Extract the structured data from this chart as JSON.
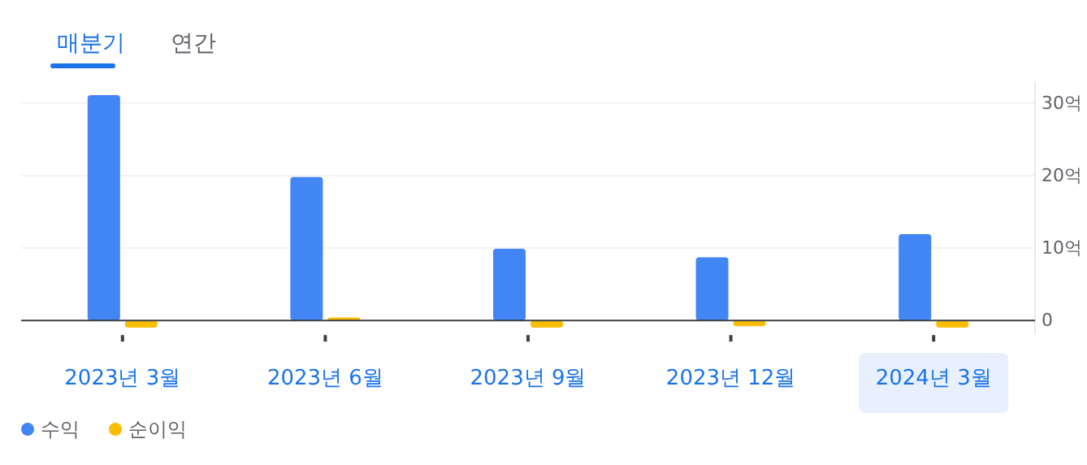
{
  "chart_data": {
    "type": "bar",
    "categories": [
      "2023년 3월",
      "2023년 6월",
      "2023년 9월",
      "2023년 12월",
      "2024년 3월"
    ],
    "series": [
      {
        "name": "수익",
        "color": "#4285f4",
        "values": [
          31.1,
          19.8,
          9.9,
          8.7,
          11.9
        ]
      },
      {
        "name": "순이익",
        "color": "#fbbc04",
        "values": [
          -1.0,
          0.4,
          -1.0,
          -0.8,
          -1.0
        ]
      }
    ],
    "ylim": [
      -2,
      33
    ],
    "yticks": [
      {
        "value": 0,
        "label": "0"
      },
      {
        "value": 10,
        "label": "10억"
      },
      {
        "value": 20,
        "label": "20억"
      },
      {
        "value": 30,
        "label": "30억"
      }
    ],
    "grid": "y",
    "legend": "bottom left",
    "annotations": [
      "매분기",
      "연간"
    ]
  }
}
